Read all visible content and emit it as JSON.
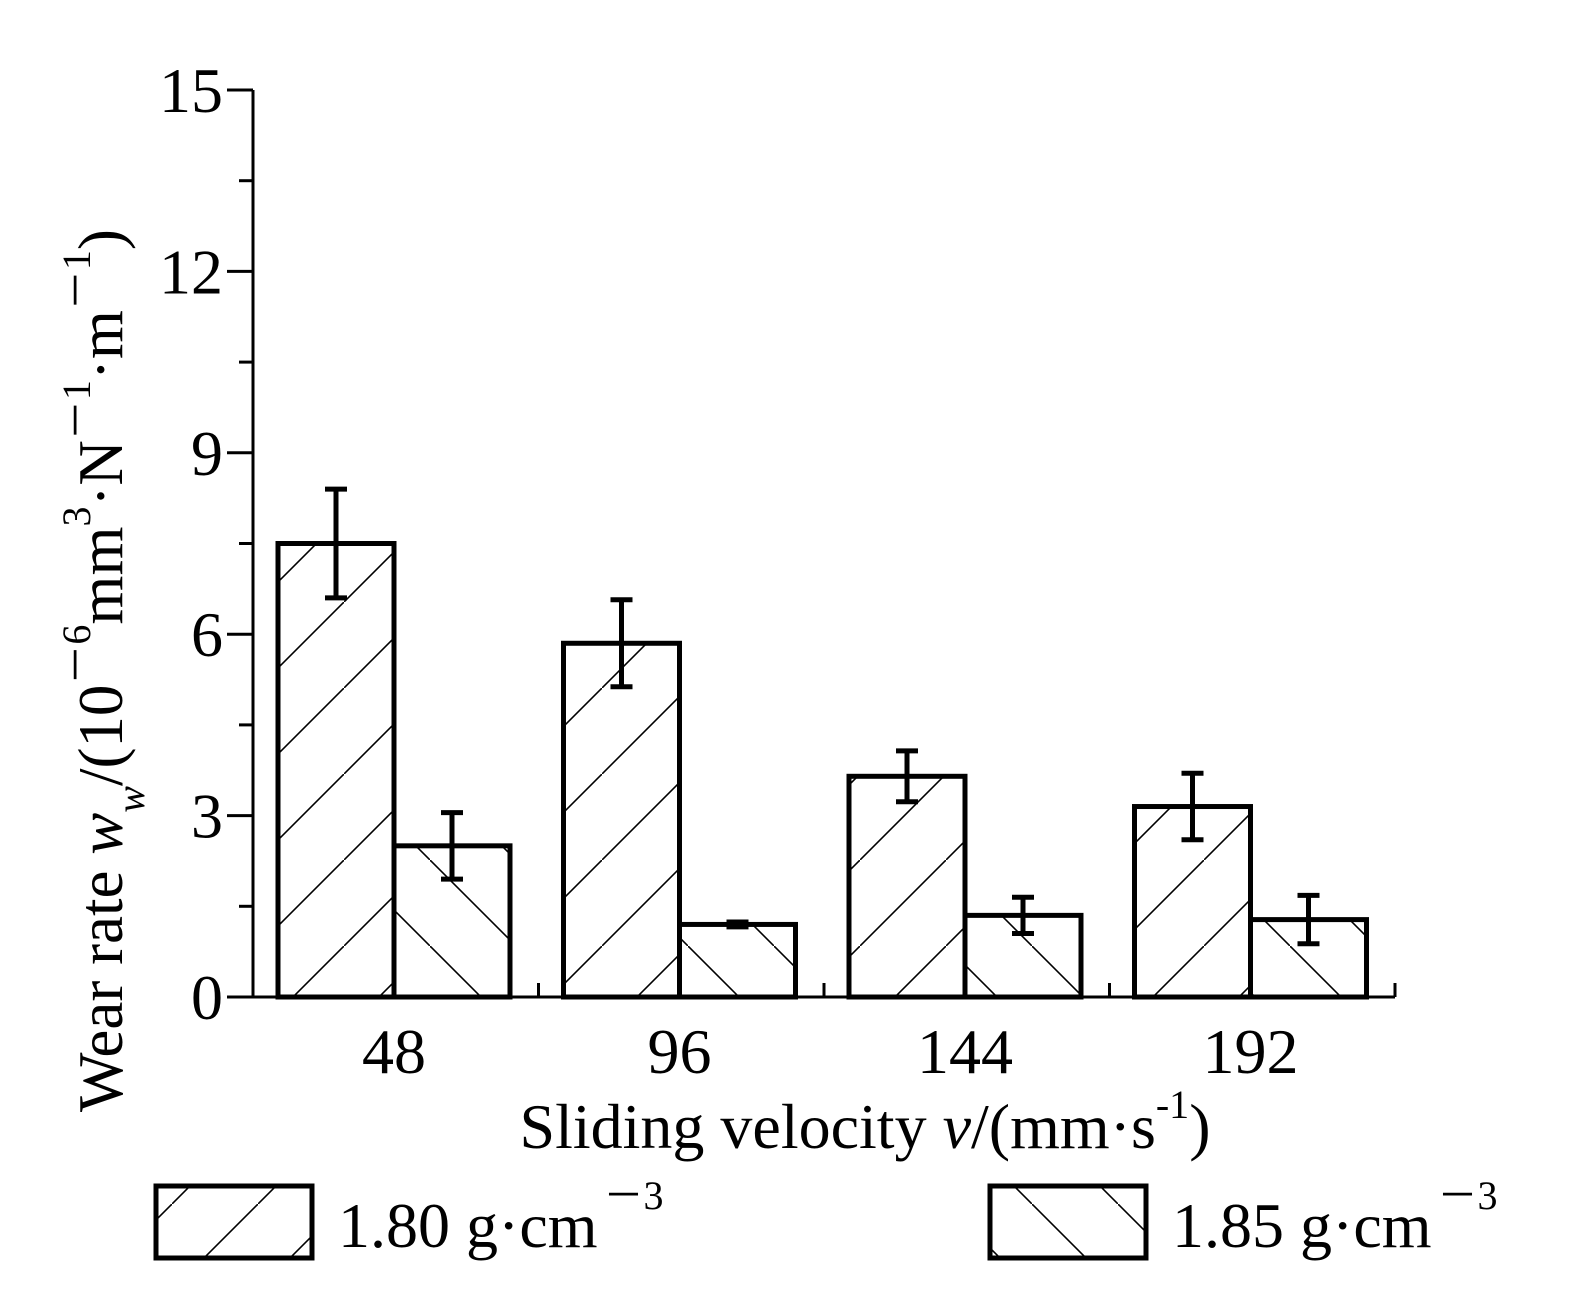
{
  "chart_data": {
    "type": "bar",
    "title": "",
    "xlabel": {
      "main": "Sliding velocity ",
      "var": "v",
      "unit_open": "/(mm·s",
      "unit_sup": "-1",
      "unit_close": ")"
    },
    "ylabel": {
      "main": "Wear rate ",
      "var": "w",
      "sub": "w",
      "p1": "/(10",
      "sup1": "－6",
      "p2": "mm",
      "sup2": "3",
      "p3": "·N",
      "sup3": "－1",
      "p4": "·m",
      "sup4": "－1",
      "p5": ")"
    },
    "categories": [
      "48",
      "96",
      "144",
      "192"
    ],
    "ylim": [
      0,
      15
    ],
    "yticks": [
      "0",
      "3",
      "6",
      "9",
      "12",
      "15"
    ],
    "series": [
      {
        "name": "1.80 g·cm",
        "name_sup": "－3",
        "hatch": "forward",
        "values": [
          7.5,
          5.85,
          3.65,
          3.15
        ],
        "errors": [
          0.9,
          0.72,
          0.42,
          0.55
        ]
      },
      {
        "name": "1.85 g·cm",
        "name_sup": "－3",
        "hatch": "backward",
        "values": [
          2.5,
          1.2,
          1.35,
          1.28
        ],
        "errors": [
          0.55,
          0.04,
          0.3,
          0.4
        ]
      }
    ],
    "legend_position": "bottom",
    "grid": false
  }
}
